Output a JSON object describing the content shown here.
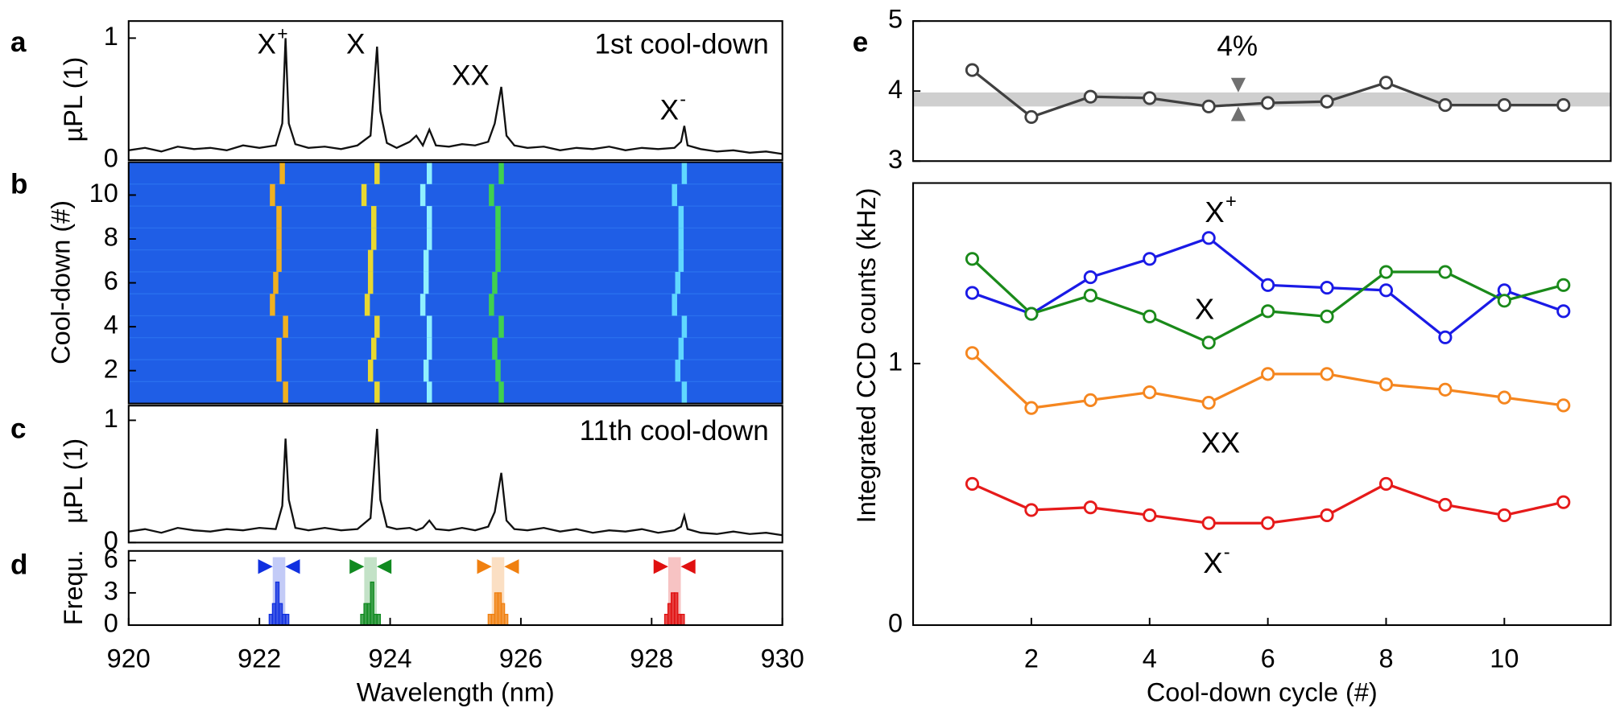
{
  "chart_data": [
    {
      "type": "line",
      "panel": "a",
      "ylabel": "µPL (1)",
      "color": "#111111",
      "annotations": [
        {
          "text": "X",
          "sup": "+"
        },
        {
          "text": "X"
        },
        {
          "text": "XX"
        },
        {
          "text": "X",
          "sup": "-"
        },
        {
          "text": "1st cool-down"
        }
      ],
      "x": [
        920,
        920.25,
        920.5,
        920.75,
        921,
        921.25,
        921.5,
        921.75,
        922,
        922.25,
        922.35,
        922.4,
        922.45,
        922.55,
        922.75,
        923,
        923.25,
        923.5,
        923.7,
        923.8,
        923.85,
        923.95,
        924.1,
        924.3,
        924.4,
        924.5,
        924.6,
        924.7,
        924.9,
        925.1,
        925.3,
        925.5,
        925.6,
        925.7,
        925.78,
        925.9,
        926.1,
        926.35,
        926.6,
        926.85,
        927.1,
        927.35,
        927.6,
        927.85,
        928.1,
        928.35,
        928.45,
        928.5,
        928.55,
        928.75,
        929,
        929.25,
        929.5,
        929.75,
        930
      ],
      "values": [
        0.08,
        0.1,
        0.07,
        0.11,
        0.09,
        0.1,
        0.08,
        0.12,
        0.1,
        0.12,
        0.3,
        1.0,
        0.3,
        0.13,
        0.1,
        0.11,
        0.09,
        0.12,
        0.2,
        0.93,
        0.4,
        0.14,
        0.1,
        0.15,
        0.2,
        0.12,
        0.25,
        0.12,
        0.11,
        0.13,
        0.12,
        0.15,
        0.3,
        0.6,
        0.2,
        0.12,
        0.1,
        0.11,
        0.08,
        0.1,
        0.09,
        0.11,
        0.08,
        0.1,
        0.09,
        0.1,
        0.15,
        0.28,
        0.12,
        0.09,
        0.07,
        0.08,
        0.06,
        0.07,
        0.05
      ],
      "xlim": [
        920,
        930
      ],
      "ylim": [
        0,
        1.14
      ],
      "yticks": [
        0,
        1
      ]
    },
    {
      "type": "heatmap",
      "panel": "b",
      "ylabel": "Cool-down (#)",
      "background": "#1f5ee6",
      "rows": [
        1,
        2,
        3,
        4,
        5,
        6,
        7,
        8,
        9,
        10,
        11
      ],
      "series": [
        {
          "color": "#f0b020",
          "values": [
            922.4,
            922.3,
            922.3,
            922.4,
            922.2,
            922.25,
            922.3,
            922.3,
            922.3,
            922.2,
            922.35
          ]
        },
        {
          "color": "#e8d830",
          "values": [
            923.8,
            923.7,
            923.75,
            923.8,
            923.65,
            923.7,
            923.7,
            923.75,
            923.75,
            923.6,
            923.8
          ]
        },
        {
          "color": "#8ff0ff",
          "values": [
            924.6,
            924.55,
            924.6,
            924.6,
            924.5,
            924.55,
            924.55,
            924.6,
            924.6,
            924.5,
            924.6
          ]
        },
        {
          "color": "#40d050",
          "values": [
            925.7,
            925.65,
            925.6,
            925.7,
            925.55,
            925.6,
            925.65,
            925.65,
            925.65,
            925.55,
            925.7
          ]
        },
        {
          "color": "#60d8ff",
          "values": [
            928.5,
            928.4,
            928.45,
            928.5,
            928.35,
            928.4,
            928.45,
            928.45,
            928.45,
            928.35,
            928.5
          ]
        }
      ],
      "xlim": [
        920,
        930
      ],
      "ylim": [
        0.5,
        11.5
      ],
      "yticks": [
        2,
        4,
        6,
        8,
        10
      ]
    },
    {
      "type": "line",
      "panel": "c",
      "ylabel": "µPL (1)",
      "color": "#111111",
      "annotations": [
        {
          "text": "11th cool-down"
        }
      ],
      "x": [
        920,
        920.25,
        920.5,
        920.75,
        921,
        921.25,
        921.5,
        921.75,
        922,
        922.25,
        922.35,
        922.4,
        922.45,
        922.55,
        922.75,
        923,
        923.25,
        923.5,
        923.7,
        923.8,
        923.85,
        923.95,
        924.1,
        924.3,
        924.4,
        924.5,
        924.6,
        924.7,
        924.9,
        925.1,
        925.3,
        925.5,
        925.6,
        925.7,
        925.78,
        925.9,
        926.1,
        926.35,
        926.6,
        926.85,
        927.1,
        927.35,
        927.6,
        927.85,
        928.1,
        928.35,
        928.45,
        928.5,
        928.55,
        928.75,
        929,
        929.25,
        929.5,
        929.75,
        930
      ],
      "values": [
        0.09,
        0.11,
        0.08,
        0.12,
        0.1,
        0.09,
        0.11,
        0.1,
        0.12,
        0.11,
        0.3,
        0.85,
        0.35,
        0.12,
        0.1,
        0.12,
        0.1,
        0.11,
        0.2,
        0.93,
        0.35,
        0.13,
        0.11,
        0.12,
        0.1,
        0.12,
        0.18,
        0.11,
        0.1,
        0.12,
        0.1,
        0.13,
        0.25,
        0.57,
        0.18,
        0.11,
        0.1,
        0.12,
        0.09,
        0.11,
        0.08,
        0.1,
        0.09,
        0.11,
        0.08,
        0.1,
        0.13,
        0.22,
        0.11,
        0.08,
        0.07,
        0.09,
        0.07,
        0.08,
        0.06
      ],
      "xlim": [
        920,
        930
      ],
      "ylim": [
        0,
        1.12
      ],
      "yticks": [
        0,
        1
      ]
    },
    {
      "type": "histogram",
      "panel": "d",
      "ylabel": "Frequ.",
      "xlabel": "Wavelength (nm)",
      "series": [
        {
          "color": "#1030e0",
          "bins": [
            922.15,
            922.2,
            922.25,
            922.3,
            922.35,
            922.4,
            922.45
          ],
          "counts": [
            1,
            2,
            4,
            2,
            1,
            1
          ],
          "marker": 922.3
        },
        {
          "color": "#108a20",
          "bins": [
            923.55,
            923.6,
            923.65,
            923.7,
            923.75,
            923.8,
            923.85
          ],
          "counts": [
            1,
            2,
            2,
            4,
            1,
            1
          ],
          "marker": 923.7
        },
        {
          "color": "#f08010",
          "bins": [
            925.5,
            925.55,
            925.6,
            925.65,
            925.7,
            925.75,
            925.8
          ],
          "counts": [
            1,
            1,
            3,
            3,
            2,
            1
          ],
          "marker": 925.65
        },
        {
          "color": "#e01010",
          "bins": [
            928.2,
            928.25,
            928.3,
            928.35,
            928.4,
            928.45,
            928.5
          ],
          "counts": [
            1,
            2,
            3,
            3,
            1,
            1
          ],
          "marker": 928.35
        }
      ],
      "xlim": [
        920,
        930
      ],
      "xticks": [
        920,
        922,
        924,
        926,
        928,
        930
      ],
      "ylim": [
        0,
        6.9
      ],
      "yticks": [
        0,
        3,
        6
      ]
    },
    {
      "type": "line",
      "panel": "e",
      "ylabel": "Integrated CCD counts (kHz)",
      "color": "#404040",
      "marker": "o",
      "annotations": [
        {
          "text": "4%"
        }
      ],
      "band": [
        3.78,
        3.98
      ],
      "x": [
        1,
        2,
        3,
        4,
        5,
        6,
        7,
        8,
        9,
        10,
        11
      ],
      "values": [
        4.3,
        3.63,
        3.92,
        3.9,
        3.78,
        3.83,
        3.85,
        4.12,
        3.8,
        3.8,
        3.8
      ],
      "xlim": [
        0,
        11.8
      ],
      "ylim": [
        3,
        5
      ],
      "yticks": [
        3,
        4,
        5
      ]
    },
    {
      "type": "line",
      "marker": "o",
      "xlabel": "Cool-down cycle (#)",
      "x": [
        1,
        2,
        3,
        4,
        5,
        6,
        7,
        8,
        9,
        10,
        11
      ],
      "series": [
        {
          "name": "X",
          "sup": "+",
          "color": "#1a1ae6",
          "values": [
            1.27,
            1.19,
            1.33,
            1.4,
            1.48,
            1.3,
            1.29,
            1.28,
            1.1,
            1.28,
            1.2
          ]
        },
        {
          "name": "X",
          "color": "#1a8a1a",
          "values": [
            1.4,
            1.19,
            1.26,
            1.18,
            1.08,
            1.2,
            1.18,
            1.35,
            1.35,
            1.24,
            1.3
          ]
        },
        {
          "name": "XX",
          "color": "#f5861f",
          "values": [
            1.04,
            0.83,
            0.86,
            0.89,
            0.85,
            0.96,
            0.96,
            0.92,
            0.9,
            0.87,
            0.84
          ]
        },
        {
          "name": "X",
          "sup": "-",
          "color": "#e61a1a",
          "values": [
            0.54,
            0.44,
            0.45,
            0.42,
            0.39,
            0.39,
            0.42,
            0.54,
            0.46,
            0.42,
            0.47
          ]
        }
      ],
      "xlim": [
        0,
        11.8
      ],
      "xticks": [
        2,
        4,
        6,
        8,
        10
      ],
      "ylim": [
        0,
        1.69
      ],
      "yticks": [
        0,
        1
      ]
    }
  ]
}
